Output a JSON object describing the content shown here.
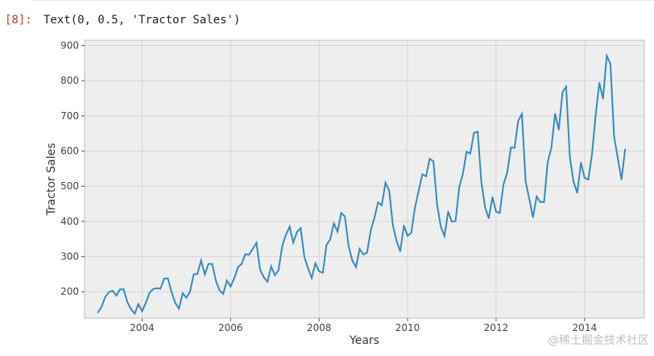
{
  "cell": {
    "prompt": "[8]:",
    "output_text": "Text(0, 0.5, 'Tractor Sales')"
  },
  "watermark": "@稀土掘金技术社区",
  "chart_data": {
    "type": "line",
    "title": "",
    "xlabel": "Years",
    "ylabel": "Tractor Sales",
    "xlim": [
      2002.7,
      2015.35
    ],
    "ylim": [
      125,
      915
    ],
    "xticks": [
      2004,
      2006,
      2008,
      2010,
      2012,
      2014
    ],
    "yticks": [
      200,
      300,
      400,
      500,
      600,
      700,
      800,
      900
    ],
    "grid": true,
    "line_color": "#348abd",
    "background": "#eeeeee",
    "series": [
      {
        "name": "",
        "start": "2003-01",
        "frequency": "monthly",
        "values": [
          141,
          157,
          185,
          199,
          203,
          189,
          207,
          207,
          171,
          150,
          138,
          165,
          145,
          168,
          197,
          208,
          210,
          209,
          238,
          238,
          199,
          168,
          152,
          196,
          183,
          200,
          249,
          251,
          289,
          249,
          279,
          279,
          232,
          204,
          194,
          232,
          215,
          239,
          270,
          279,
          307,
          305,
          322,
          339,
          263,
          241,
          229,
          272,
          247,
          261,
          330,
          362,
          385,
          340,
          370,
          381,
          299,
          266,
          239,
          281,
          258,
          254,
          333,
          349,
          394,
          371,
          424,
          414,
          330,
          289,
          270,
          322,
          306,
          311,
          374,
          411,
          454,
          446,
          510,
          488,
          389,
          345,
          315,
          388,
          359,
          368,
          439,
          487,
          534,
          528,
          578,
          571,
          448,
          385,
          358,
          428,
          399,
          401,
          498,
          535,
          598,
          593,
          652,
          655,
          513,
          441,
          409,
          469,
          428,
          424,
          505,
          538,
          610,
          609,
          686,
          706,
          514,
          463,
          412,
          471,
          455,
          455,
          568,
          610,
          706,
          661,
          767,
          783,
          583,
          513,
          481,
          567,
          524,
          519,
          590,
          703,
          794,
          749,
          871,
          848,
          640,
          581,
          519,
          605
        ]
      }
    ]
  }
}
